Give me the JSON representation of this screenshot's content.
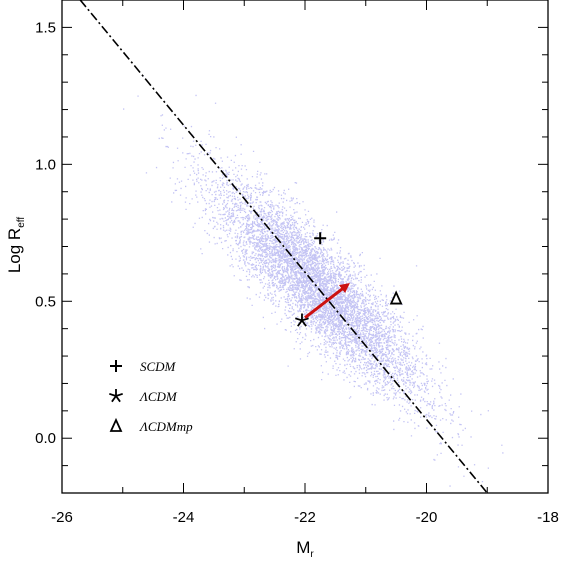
{
  "chart_data": {
    "type": "scatter",
    "xlabel": "M",
    "xlabel_sub": "r",
    "ylabel": "Log R",
    "ylabel_sub": "eff",
    "xlim": [
      -26,
      -18
    ],
    "ylim": [
      -0.2,
      1.6
    ],
    "x_ticks": [
      -26,
      -24,
      -22,
      -20,
      -18
    ],
    "x_tick_labels": [
      "-26",
      "-24",
      "-22",
      "-20",
      "-18"
    ],
    "y_ticks": [
      0.0,
      0.5,
      1.0,
      1.5
    ],
    "y_tick_labels": [
      "0.0",
      "0.5",
      "1.0",
      "1.5"
    ],
    "grid": false,
    "scatter_cloud": {
      "color": "#c4c4f4",
      "center": [
        -21.8,
        0.55
      ],
      "slope": -0.2,
      "count": 9000
    },
    "fit_line": {
      "style": "dash-dot",
      "color": "#000000",
      "points": [
        [
          -25.7,
          1.6
        ],
        [
          -19.0,
          -0.2
        ]
      ]
    },
    "markers": [
      {
        "symbol": "+",
        "label": "SCDM",
        "x": -21.75,
        "y": 0.73
      },
      {
        "symbol": "*",
        "label": "ΛCDM",
        "x": -22.05,
        "y": 0.43
      },
      {
        "symbol": "Δ",
        "label": "ΛCDMmp",
        "x": -20.5,
        "y": 0.51
      }
    ],
    "arrow": {
      "color": "#cc1111",
      "from": [
        -22.0,
        0.44
      ],
      "to": [
        -21.3,
        0.56
      ]
    },
    "legend": {
      "placement": "lower-left",
      "entries": [
        {
          "symbol": "+",
          "label": "SCDM"
        },
        {
          "symbol": "*",
          "label": "ΛCDM"
        },
        {
          "symbol": "Δ",
          "label": "ΛCDMmp"
        }
      ]
    }
  }
}
